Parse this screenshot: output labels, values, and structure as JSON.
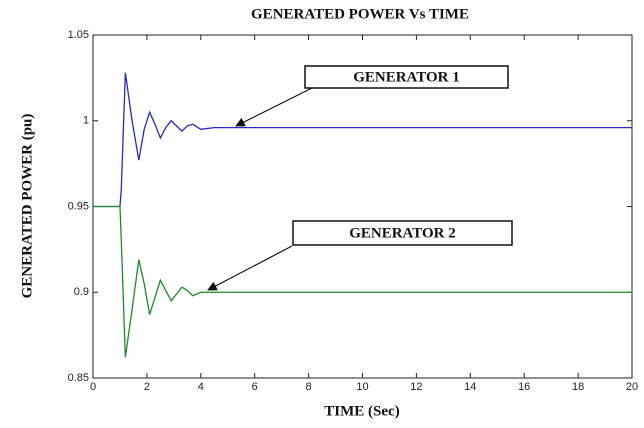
{
  "chart_data": {
    "type": "line",
    "title": "GENERATED POWER Vs TIME",
    "xlabel": "TIME (Sec)",
    "ylabel": "GENERATED POWER (pu)",
    "x": [
      0,
      1,
      1.05,
      1.2,
      1.45,
      1.7,
      1.9,
      2.1,
      2.3,
      2.5,
      2.7,
      2.9,
      3.1,
      3.3,
      3.5,
      3.7,
      4,
      4.5,
      6,
      10,
      20
    ],
    "series": [
      {
        "name": "GENERATOR 1",
        "color": "#2828c8",
        "values": [
          0.95,
          0.95,
          0.96,
          1.028,
          1.0,
          0.977,
          0.995,
          1.005,
          0.998,
          0.99,
          0.996,
          1.0,
          0.997,
          0.994,
          0.997,
          0.998,
          0.995,
          0.996,
          0.996,
          0.996,
          0.996
        ]
      },
      {
        "name": "GENERATOR 2",
        "color": "#1f8a2a",
        "values": [
          0.95,
          0.95,
          0.93,
          0.862,
          0.89,
          0.919,
          0.905,
          0.887,
          0.897,
          0.907,
          0.901,
          0.895,
          0.899,
          0.903,
          0.901,
          0.898,
          0.9,
          0.9,
          0.9,
          0.9,
          0.9
        ]
      }
    ],
    "xlim": [
      0,
      20
    ],
    "xticks": [
      0,
      2,
      4,
      6,
      8,
      10,
      12,
      14,
      16,
      18,
      20
    ],
    "ylim": [
      0.85,
      1.05
    ],
    "yticks": [
      0.85,
      0.9,
      0.95,
      1,
      1.05
    ],
    "grid": false
  }
}
